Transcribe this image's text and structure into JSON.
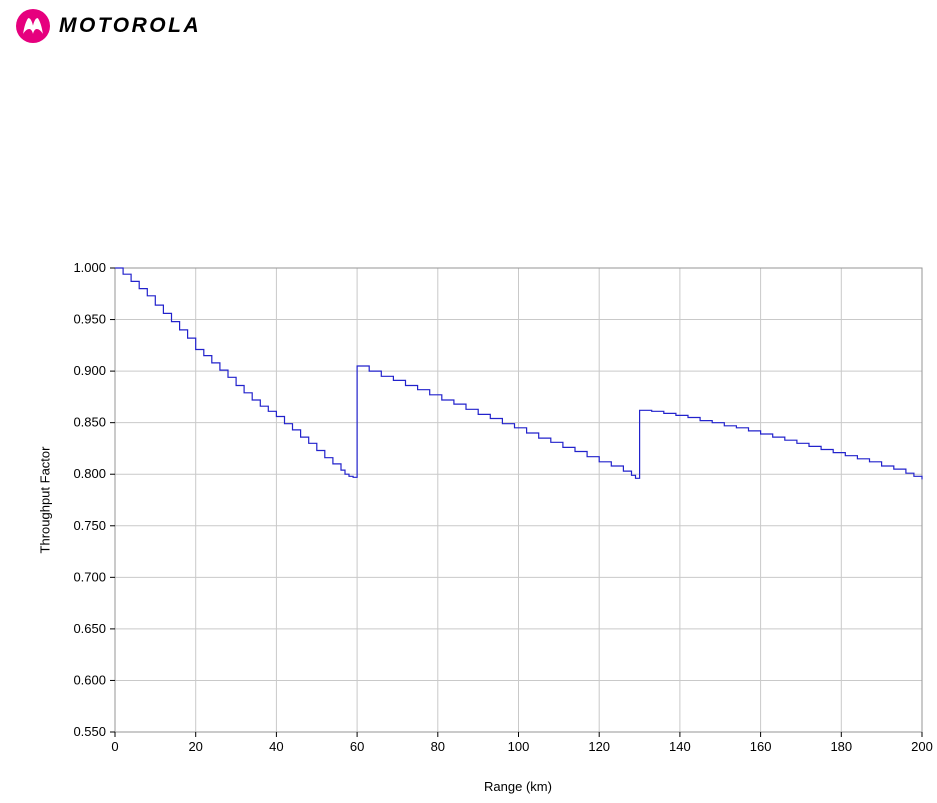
{
  "logo": {
    "wordmark": "MOTOROLA",
    "brand_color": "#E6007E"
  },
  "chart_data": {
    "type": "line",
    "title": "",
    "xlabel": "Range (km)",
    "ylabel": "Throughput Factor",
    "xlim": [
      0,
      200
    ],
    "ylim": [
      0.55,
      1.0
    ],
    "xticks": [
      0,
      20,
      40,
      60,
      80,
      100,
      120,
      140,
      160,
      180,
      200
    ],
    "xtick_labels": [
      "0",
      "20",
      "40",
      "60",
      "80",
      "100",
      "120",
      "140",
      "160",
      "180",
      "200"
    ],
    "yticks": [
      0.55,
      0.6,
      0.65,
      0.7,
      0.75,
      0.8,
      0.85,
      0.9,
      0.95,
      1.0
    ],
    "ytick_labels": [
      "0.550",
      "0.600",
      "0.650",
      "0.700",
      "0.750",
      "0.800",
      "0.850",
      "0.900",
      "0.950",
      "1.000"
    ],
    "grid": true,
    "legend": false,
    "colors": {
      "line": "#2222CC",
      "grid": "#C9C9C9",
      "border": "#969696",
      "axis": "#000000",
      "text": "#000000"
    },
    "series": [
      {
        "name": "Throughput Factor vs Range",
        "style": "step-after",
        "points": [
          [
            0,
            1.0
          ],
          [
            2,
            0.994
          ],
          [
            4,
            0.987
          ],
          [
            6,
            0.98
          ],
          [
            8,
            0.973
          ],
          [
            10,
            0.964
          ],
          [
            12,
            0.956
          ],
          [
            14,
            0.948
          ],
          [
            16,
            0.94
          ],
          [
            18,
            0.932
          ],
          [
            20,
            0.921
          ],
          [
            22,
            0.915
          ],
          [
            24,
            0.908
          ],
          [
            26,
            0.901
          ],
          [
            28,
            0.894
          ],
          [
            30,
            0.886
          ],
          [
            32,
            0.879
          ],
          [
            34,
            0.872
          ],
          [
            36,
            0.866
          ],
          [
            38,
            0.861
          ],
          [
            40,
            0.856
          ],
          [
            42,
            0.849
          ],
          [
            44,
            0.843
          ],
          [
            46,
            0.836
          ],
          [
            48,
            0.83
          ],
          [
            50,
            0.823
          ],
          [
            52,
            0.816
          ],
          [
            54,
            0.81
          ],
          [
            56,
            0.804
          ],
          [
            57,
            0.8
          ],
          [
            58,
            0.798
          ],
          [
            59,
            0.797
          ],
          [
            60,
            0.905
          ],
          [
            63,
            0.9
          ],
          [
            66,
            0.895
          ],
          [
            69,
            0.891
          ],
          [
            72,
            0.886
          ],
          [
            75,
            0.882
          ],
          [
            78,
            0.877
          ],
          [
            81,
            0.872
          ],
          [
            84,
            0.868
          ],
          [
            87,
            0.863
          ],
          [
            90,
            0.858
          ],
          [
            93,
            0.854
          ],
          [
            96,
            0.849
          ],
          [
            99,
            0.845
          ],
          [
            102,
            0.84
          ],
          [
            105,
            0.835
          ],
          [
            108,
            0.831
          ],
          [
            111,
            0.826
          ],
          [
            114,
            0.822
          ],
          [
            117,
            0.817
          ],
          [
            120,
            0.812
          ],
          [
            123,
            0.808
          ],
          [
            126,
            0.803
          ],
          [
            128,
            0.799
          ],
          [
            129,
            0.796
          ],
          [
            130,
            0.862
          ],
          [
            133,
            0.861
          ],
          [
            136,
            0.859
          ],
          [
            139,
            0.857
          ],
          [
            142,
            0.855
          ],
          [
            145,
            0.852
          ],
          [
            148,
            0.85
          ],
          [
            151,
            0.847
          ],
          [
            154,
            0.845
          ],
          [
            157,
            0.842
          ],
          [
            160,
            0.839
          ],
          [
            163,
            0.836
          ],
          [
            166,
            0.833
          ],
          [
            169,
            0.83
          ],
          [
            172,
            0.827
          ],
          [
            175,
            0.824
          ],
          [
            178,
            0.821
          ],
          [
            181,
            0.818
          ],
          [
            184,
            0.815
          ],
          [
            187,
            0.812
          ],
          [
            190,
            0.808
          ],
          [
            193,
            0.805
          ],
          [
            196,
            0.801
          ],
          [
            198,
            0.798
          ],
          [
            200,
            0.795
          ]
        ]
      }
    ]
  }
}
